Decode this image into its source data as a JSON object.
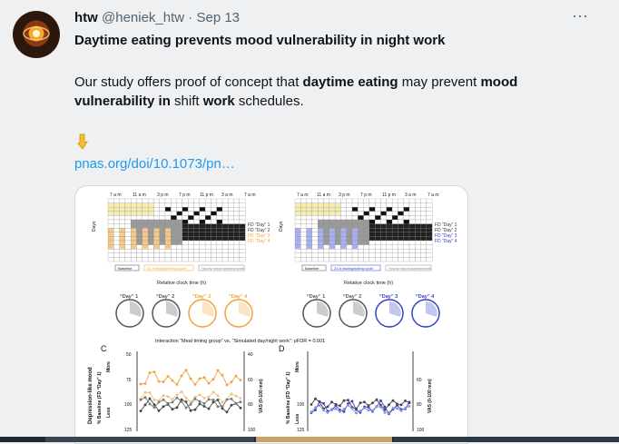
{
  "tweet": {
    "author_name": "htw",
    "handle": "@heniek_htw",
    "separator": "·",
    "date": "Sep 13",
    "more_label": "···",
    "title": "Daytime eating prevents mood vulnerability in night work",
    "body": {
      "part1": "Our study offers proof of concept that ",
      "bold1": "daytime eating",
      "part2": " may prevent ",
      "bold2": "mood vulnerability in",
      "part3": " shift ",
      "bold3": "work",
      "part4": " schedules."
    },
    "pointing_emoji": "pointing-down-hand-icon",
    "link": "pnas.org/doi/10.1073/pn…"
  },
  "figure": {
    "time_labels": [
      "7 a m",
      "11 a m",
      "3 p m",
      "7 p m",
      "11 p m",
      "3 a m",
      "7 a m"
    ],
    "days_label": "Days",
    "fd_labels": [
      "FD “Day” 1",
      "FD “Day” 2",
      "FD “Day” 3",
      "FD “Day” 4"
    ],
    "legend": [
      "Baseline",
      "24-h fasting/eating cycle",
      "Hourly mood assessments"
    ],
    "relative_clock_title": "Relative clock time (h)",
    "clock_day_labels": [
      "“Day” 1",
      "“Day” 2",
      "“Day” 3",
      "“Day” 4"
    ],
    "interaction_title": "Interaction “Meal timing group” vs. “Simulated day/night work”: pFDR = 0.001",
    "panel_c_label": "C",
    "panel_d_label": "D",
    "y_left_labels": [
      "50",
      "75",
      "100",
      "125"
    ],
    "y_right_labels": [
      "40",
      "60",
      "80",
      "100"
    ],
    "y_axis_title": "Depression-like mood",
    "y_axis_sub": "% Baseline (FD “Day” 1)",
    "y_axis_more": "More",
    "y_axis_less": "Less",
    "vas_label": "VAS (0-100 mm)",
    "colors": {
      "orange": "#f2a23a",
      "blue": "#3440c8",
      "gray": "#555555",
      "yellow": "#f7edb0"
    }
  }
}
